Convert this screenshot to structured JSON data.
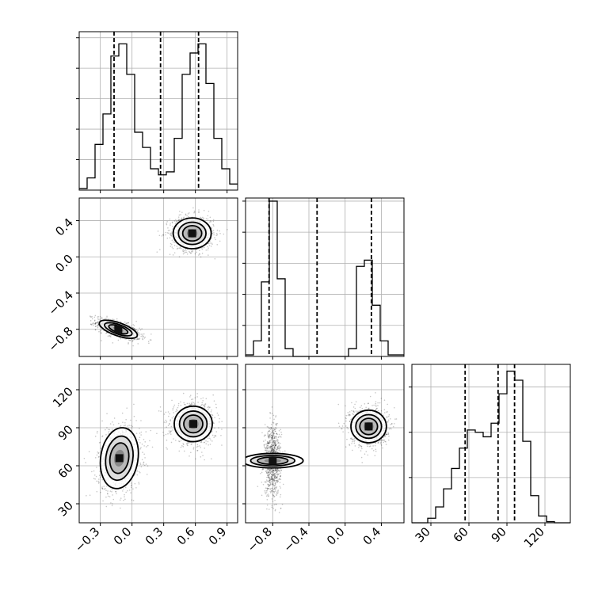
{
  "chart_data": {
    "type": "corner",
    "grid": true,
    "parameters": [
      {
        "range": [
          -0.5,
          1.0
        ],
        "ticks": [
          "−0.3",
          "0.0",
          "0.3",
          "0.6",
          "0.9"
        ],
        "tick_values": [
          -0.3,
          0.0,
          0.3,
          0.6,
          0.9
        ]
      },
      {
        "range": [
          -1.1,
          0.65
        ],
        "ticks": [
          "−0.8",
          "−0.4",
          "0.0",
          "0.4"
        ],
        "tick_values": [
          -0.8,
          -0.4,
          0.0,
          0.4
        ]
      },
      {
        "range": [
          15,
          140
        ],
        "ticks": [
          "30",
          "60",
          "90",
          "120"
        ],
        "tick_values": [
          30,
          60,
          90,
          120
        ]
      }
    ],
    "histograms": [
      {
        "param": 0,
        "bin_edges": [
          -0.5,
          -0.425,
          -0.35,
          -0.275,
          -0.2,
          -0.125,
          -0.05,
          0.025,
          0.1,
          0.175,
          0.25,
          0.325,
          0.4,
          0.475,
          0.55,
          0.625,
          0.7,
          0.775,
          0.85,
          0.925,
          1.0
        ],
        "counts": [
          0.5,
          4,
          15,
          25,
          44,
          48,
          38,
          19,
          14,
          7,
          5,
          6,
          17,
          38,
          45,
          48,
          35,
          17,
          7,
          2
        ],
        "ymax": 52,
        "quantiles": [
          -0.17,
          0.27,
          0.63
        ]
      },
      {
        "param": 1,
        "bin_edges": [
          -1.1,
          -1.0125,
          -0.925,
          -0.8375,
          -0.75,
          -0.6625,
          -0.575,
          -0.4875,
          -0.4,
          -0.3125,
          -0.225,
          -0.1375,
          -0.05,
          0.0375,
          0.125,
          0.2125,
          0.3,
          0.3875,
          0.475,
          0.5625,
          0.65
        ],
        "counts": [
          1,
          10,
          48,
          100,
          50,
          5,
          0,
          0,
          0,
          0,
          0,
          0,
          0,
          5,
          58,
          62,
          33,
          10,
          1,
          1
        ],
        "ymax": 102,
        "quantiles": [
          -0.84,
          -0.31,
          0.29
        ]
      },
      {
        "param": 2,
        "bin_edges": [
          15,
          21.25,
          27.5,
          33.75,
          40,
          46.25,
          52.5,
          58.75,
          65,
          71.25,
          77.5,
          83.75,
          90,
          96.25,
          102.5,
          108.75,
          115,
          121.25,
          127.5,
          133.75,
          140
        ],
        "counts": [
          0,
          0,
          2,
          7,
          15,
          24,
          33,
          41,
          40,
          38,
          44,
          57,
          67,
          63,
          36,
          12,
          3,
          0.5,
          0,
          0
        ],
        "ymax": 70,
        "quantiles": [
          57,
          83,
          96
        ]
      }
    ],
    "density_panels": [
      {
        "x_param": 0,
        "y_param": 1,
        "clusters": [
          {
            "center_x": -0.13,
            "center_y": -0.8,
            "sd_x": 0.09,
            "sd_y": 0.05,
            "rho": -0.65,
            "weight": 0.5
          },
          {
            "center_x": 0.57,
            "center_y": 0.26,
            "sd_x": 0.09,
            "sd_y": 0.085,
            "rho": 0.0,
            "weight": 0.5
          }
        ]
      },
      {
        "x_param": 0,
        "y_param": 2,
        "clusters": [
          {
            "center_x": -0.12,
            "center_y": 66,
            "sd_x": 0.09,
            "sd_y": 12,
            "rho": 0.15,
            "weight": 0.5
          },
          {
            "center_x": 0.58,
            "center_y": 93,
            "sd_x": 0.09,
            "sd_y": 7,
            "rho": 0.0,
            "weight": 0.5
          }
        ]
      },
      {
        "x_param": 1,
        "y_param": 2,
        "clusters": [
          {
            "center_x": -0.8,
            "center_y": 64,
            "sd_x": 0.04,
            "sd_y": 12,
            "rho": 0.0,
            "weight": 0.5
          },
          {
            "center_x": 0.26,
            "center_y": 91,
            "sd_x": 0.09,
            "sd_y": 7,
            "rho": 0.0,
            "weight": 0.5
          }
        ]
      }
    ]
  }
}
